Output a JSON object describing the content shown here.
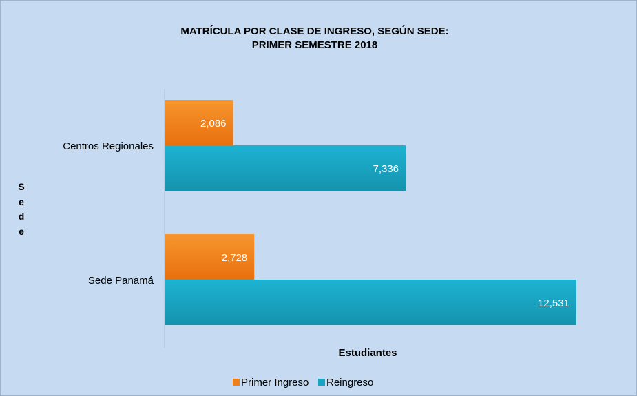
{
  "chart_data": {
    "type": "barh",
    "title": [
      "MATRÍCULA POR CLASE DE INGRESO, SEGÚN SEDE:",
      "PRIMER SEMESTRE 2018"
    ],
    "x_label": "Estudiantes",
    "y_label": "Sede",
    "categories": [
      "Centros Regionales",
      "Sede Panamá"
    ],
    "series": [
      {
        "name": "Primer Ingreso",
        "color": "#f07f1a",
        "values": [
          2086,
          2728
        ],
        "value_labels": [
          "2,086",
          "2,728"
        ]
      },
      {
        "name": "Reingreso",
        "color": "#18a4c2",
        "values": [
          7336,
          12531
        ],
        "value_labels": [
          "7,336",
          "12,531"
        ]
      }
    ],
    "xlim": [
      0,
      14000
    ],
    "legend": "bottom"
  }
}
